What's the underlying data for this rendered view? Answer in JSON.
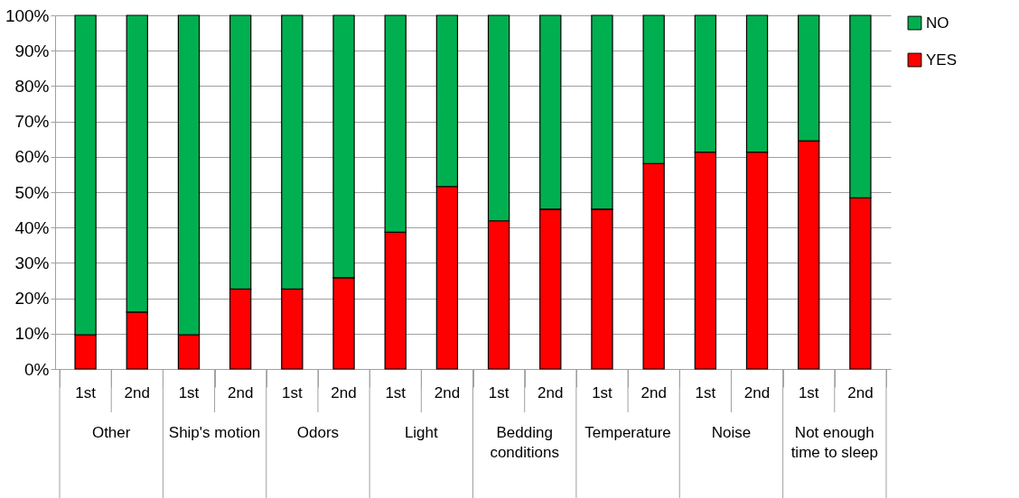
{
  "chart_data": {
    "type": "bar",
    "stacked": true,
    "categories": [
      "1st",
      "2nd",
      "1st",
      "2nd",
      "1st",
      "2nd",
      "1st",
      "2nd",
      "1st",
      "2nd",
      "1st",
      "2nd",
      "1st",
      "2nd",
      "1st",
      "2nd"
    ],
    "annotations": [
      "Other",
      "Ship's motion",
      "Odors",
      "Light",
      "Bedding conditions",
      "Temperature",
      "Noise",
      "Not enough time to sleep"
    ],
    "series": [
      {
        "name": "YES",
        "color": "#ff0000",
        "values": [
          9.7,
          16.1,
          9.7,
          22.6,
          22.6,
          25.8,
          38.7,
          51.6,
          41.9,
          45.2,
          45.2,
          58.1,
          61.3,
          61.3,
          64.5,
          48.4
        ]
      },
      {
        "name": "NO",
        "color": "#00b050",
        "values": [
          90.3,
          83.9,
          90.3,
          77.4,
          77.4,
          74.2,
          61.3,
          48.4,
          58.1,
          54.8,
          54.8,
          41.9,
          38.7,
          38.7,
          35.5,
          51.6
        ]
      }
    ],
    "ylim": [
      0,
      100
    ],
    "yticks": [
      {
        "value": 0,
        "label": "0%"
      },
      {
        "value": 10,
        "label": "10%"
      },
      {
        "value": 20,
        "label": "20%"
      },
      {
        "value": 30,
        "label": "30%"
      },
      {
        "value": 40,
        "label": "40%"
      },
      {
        "value": 50,
        "label": "50%"
      },
      {
        "value": 60,
        "label": "60%"
      },
      {
        "value": 70,
        "label": "70%"
      },
      {
        "value": 80,
        "label": "80%"
      },
      {
        "value": 90,
        "label": "90%"
      },
      {
        "value": 100,
        "label": "100%"
      }
    ],
    "grid": "y",
    "legend": "right"
  }
}
